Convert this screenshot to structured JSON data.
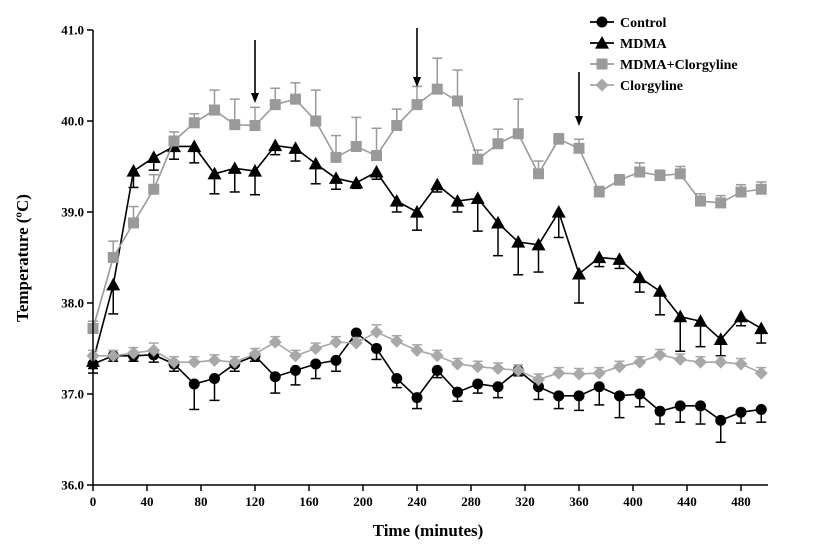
{
  "chart_data": {
    "type": "line",
    "xlabel": "Time (minutes)",
    "ylabel": "Temperature (ºC)",
    "xlim": [
      0,
      500
    ],
    "ylim": [
      36.0,
      41.0
    ],
    "x_ticks": [
      0,
      40,
      80,
      120,
      160,
      200,
      240,
      280,
      320,
      360,
      400,
      440,
      480
    ],
    "y_ticks": [
      36.0,
      37.0,
      38.0,
      39.0,
      40.0,
      41.0
    ],
    "x_tick_labels": [
      "0",
      "40",
      "80",
      "120",
      "160",
      "200",
      "240",
      "280",
      "320",
      "360",
      "400",
      "440",
      "480"
    ],
    "y_tick_labels": [
      "36.0",
      "37.0",
      "38.0",
      "39.0",
      "40.0",
      "41.0"
    ],
    "grid": false,
    "legend_position": "top-right",
    "arrows_at_x": [
      120,
      240,
      360
    ],
    "series": [
      {
        "name": "Control",
        "marker": "circle",
        "color": "#000000",
        "line_color": "#000000",
        "x": [
          0,
          15,
          30,
          45,
          60,
          75,
          90,
          105,
          120,
          135,
          150,
          165,
          180,
          195,
          210,
          225,
          240,
          255,
          270,
          285,
          300,
          315,
          330,
          345,
          360,
          375,
          390,
          405,
          420,
          435,
          450,
          465,
          480,
          495
        ],
        "y": [
          37.33,
          37.42,
          37.42,
          37.43,
          37.33,
          37.11,
          37.17,
          37.33,
          37.42,
          37.19,
          37.26,
          37.33,
          37.37,
          37.67,
          37.5,
          37.17,
          36.96,
          37.26,
          37.02,
          37.11,
          37.08,
          37.26,
          37.08,
          36.98,
          36.98,
          37.08,
          36.98,
          37.0,
          36.81,
          36.87,
          36.87,
          36.71,
          36.8,
          36.83
        ],
        "err": [
          0.1,
          0.06,
          0.06,
          0.08,
          0.08,
          0.28,
          0.24,
          0.08,
          0.06,
          0.18,
          0.16,
          0.16,
          0.12,
          0.08,
          0.12,
          0.1,
          0.12,
          0.08,
          0.1,
          0.1,
          0.12,
          0.06,
          0.14,
          0.14,
          0.16,
          0.2,
          0.24,
          0.14,
          0.14,
          0.18,
          0.2,
          0.24,
          0.12,
          0.14
        ]
      },
      {
        "name": "MDMA",
        "marker": "triangle",
        "color": "#000000",
        "line_color": "#000000",
        "x": [
          0,
          15,
          30,
          45,
          60,
          75,
          90,
          105,
          120,
          135,
          150,
          165,
          180,
          195,
          210,
          225,
          240,
          255,
          270,
          285,
          300,
          315,
          330,
          345,
          360,
          375,
          390,
          405,
          420,
          435,
          450,
          465,
          480,
          495
        ],
        "y": [
          37.36,
          38.2,
          39.45,
          39.6,
          39.72,
          39.72,
          39.42,
          39.48,
          39.45,
          39.73,
          39.7,
          39.53,
          39.37,
          39.32,
          39.44,
          39.12,
          39.0,
          39.3,
          39.12,
          39.15,
          38.88,
          38.67,
          38.64,
          39.0,
          38.32,
          38.5,
          38.48,
          38.28,
          38.13,
          37.85,
          37.8,
          37.6,
          37.85,
          37.72
        ],
        "err": [
          0.08,
          0.32,
          0.18,
          0.14,
          0.14,
          0.18,
          0.22,
          0.26,
          0.26,
          0.1,
          0.14,
          0.22,
          0.12,
          0.06,
          0.08,
          0.12,
          0.2,
          0.08,
          0.12,
          0.36,
          0.36,
          0.36,
          0.3,
          0.28,
          0.32,
          0.1,
          0.1,
          0.16,
          0.26,
          0.38,
          0.28,
          0.18,
          0.1,
          0.16
        ]
      },
      {
        "name": "MDMA+Clorgyline",
        "marker": "square",
        "color": "#9a9a9a",
        "line_color": "#9a9a9a",
        "x": [
          0,
          15,
          30,
          45,
          60,
          75,
          90,
          105,
          120,
          135,
          150,
          165,
          180,
          195,
          210,
          225,
          240,
          255,
          270,
          285,
          300,
          315,
          330,
          345,
          360,
          375,
          390,
          405,
          420,
          435,
          450,
          465,
          480,
          495
        ],
        "y": [
          37.72,
          38.5,
          38.88,
          39.25,
          39.78,
          39.98,
          40.12,
          39.96,
          39.95,
          40.18,
          40.24,
          40.0,
          39.6,
          39.72,
          39.62,
          39.95,
          40.18,
          40.35,
          40.22,
          39.58,
          39.75,
          39.86,
          39.42,
          39.8,
          39.7,
          39.22,
          39.35,
          39.44,
          39.4,
          39.42,
          39.12,
          39.1,
          39.22,
          39.25
        ],
        "err": [
          0.08,
          0.18,
          0.18,
          0.16,
          0.1,
          0.1,
          0.22,
          0.28,
          0.2,
          0.18,
          0.18,
          0.34,
          0.24,
          0.32,
          0.3,
          0.18,
          0.2,
          0.34,
          0.34,
          0.1,
          0.16,
          0.38,
          0.14,
          0.06,
          0.1,
          0.06,
          0.06,
          0.1,
          0.06,
          0.08,
          0.08,
          0.08,
          0.08,
          0.08
        ]
      },
      {
        "name": "Clorgyline",
        "marker": "diamond",
        "color": "#a8a8a8",
        "line_color": "#a8a8a8",
        "x": [
          0,
          15,
          30,
          45,
          60,
          75,
          90,
          105,
          120,
          135,
          150,
          165,
          180,
          195,
          210,
          225,
          240,
          255,
          270,
          285,
          300,
          315,
          330,
          345,
          360,
          375,
          390,
          405,
          420,
          435,
          450,
          465,
          480,
          495
        ],
        "y": [
          37.42,
          37.42,
          37.45,
          37.48,
          37.35,
          37.35,
          37.37,
          37.35,
          37.44,
          37.57,
          37.42,
          37.5,
          37.57,
          37.56,
          37.68,
          37.58,
          37.48,
          37.42,
          37.33,
          37.3,
          37.28,
          37.26,
          37.16,
          37.23,
          37.22,
          37.23,
          37.3,
          37.35,
          37.43,
          37.38,
          37.35,
          37.35,
          37.33,
          37.23
        ],
        "err": [
          0.06,
          0.06,
          0.06,
          0.08,
          0.06,
          0.06,
          0.06,
          0.06,
          0.06,
          0.06,
          0.06,
          0.06,
          0.06,
          0.06,
          0.08,
          0.06,
          0.06,
          0.06,
          0.06,
          0.06,
          0.06,
          0.06,
          0.06,
          0.06,
          0.06,
          0.06,
          0.06,
          0.06,
          0.06,
          0.06,
          0.06,
          0.06,
          0.06,
          0.06
        ]
      }
    ]
  }
}
